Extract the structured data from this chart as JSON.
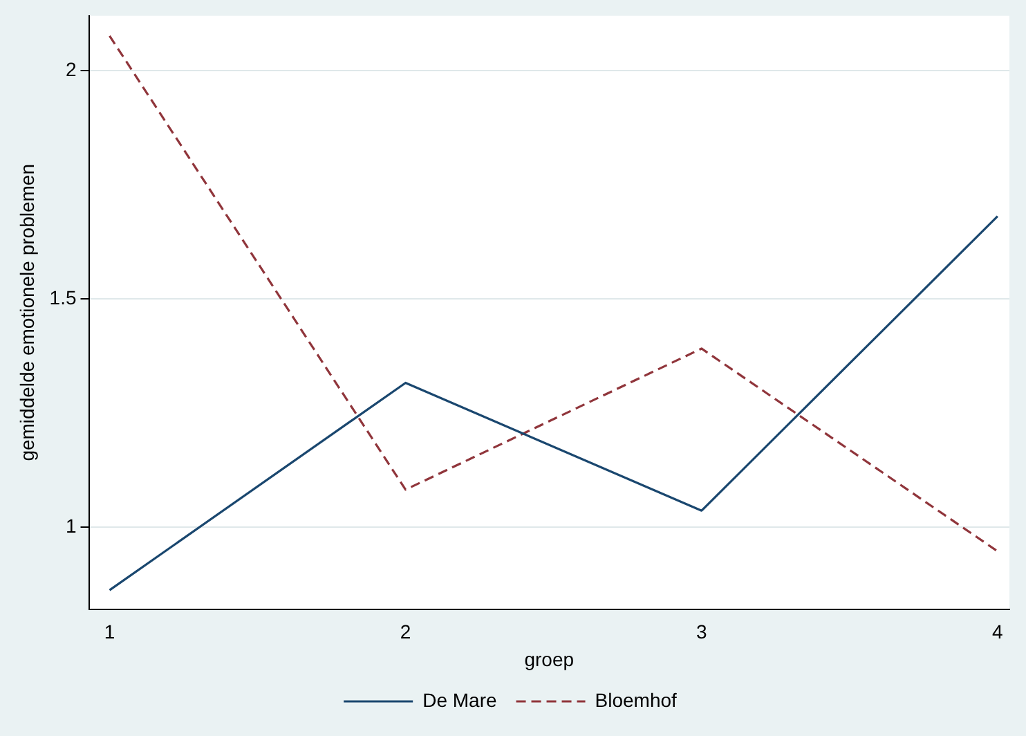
{
  "chart_data": {
    "type": "line",
    "xlabel": "groep",
    "ylabel": "gemiddelde emotionele problemen",
    "x": [
      1,
      2,
      3,
      4
    ],
    "xlim": [
      0.93,
      4.04
    ],
    "xticks": [
      1,
      2,
      3,
      4
    ],
    "ylim": [
      0.82,
      2.12
    ],
    "yticks": [
      1,
      1.5,
      2
    ],
    "series": [
      {
        "name": "De Mare",
        "color": "#1a476f",
        "values": [
          0.862,
          1.316,
          1.036,
          1.681
        ],
        "line_style": "solid"
      },
      {
        "name": "Bloemhof",
        "color": "#90353b",
        "values": [
          2.076,
          1.082,
          1.391,
          0.947
        ],
        "line_style": "dashed"
      }
    ],
    "grid": "y",
    "legend": "bottom",
    "marker": "none"
  }
}
